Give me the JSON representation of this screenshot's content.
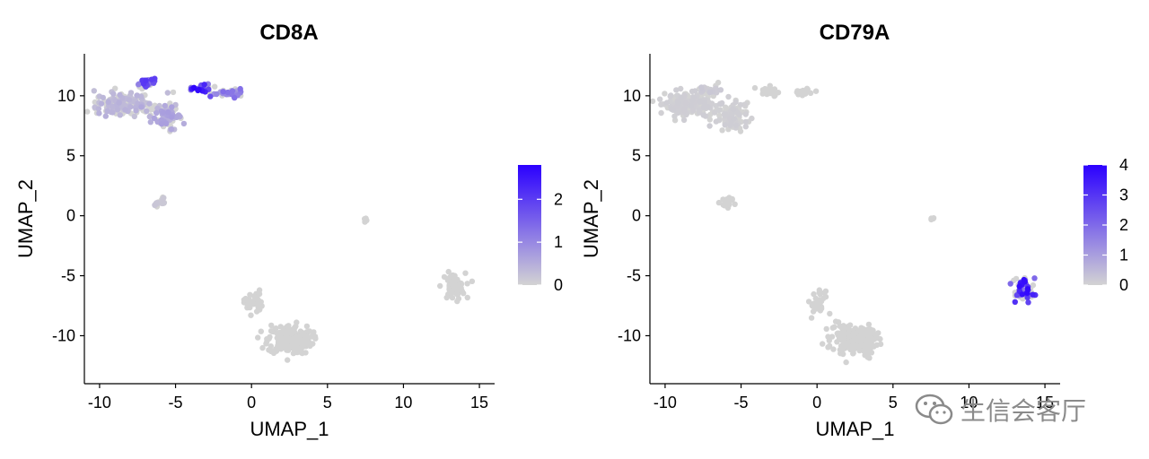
{
  "chart_data": [
    {
      "type": "scatter",
      "title": "CD8A",
      "xlabel": "UMAP_1",
      "ylabel": "UMAP_2",
      "xlim": [
        -11,
        16
      ],
      "ylim": [
        -14,
        13.5
      ],
      "xticks": [
        -10,
        -5,
        0,
        5,
        10,
        15
      ],
      "yticks": [
        -10,
        -5,
        0,
        5,
        10
      ],
      "grid": false,
      "colorbar": {
        "min": 0,
        "max": 2.8,
        "ticks": [
          0,
          1,
          2
        ],
        "low_color": "#d3d3d3",
        "high_color": "#2b00ff",
        "placement": "right"
      },
      "clusters": [
        {
          "name": "c1",
          "center": [
            -8.5,
            9.3
          ],
          "spread": [
            1.6,
            0.9
          ],
          "n": 170,
          "expr": 0.4
        },
        {
          "name": "c2",
          "center": [
            -5.6,
            8.3
          ],
          "spread": [
            0.9,
            1.1
          ],
          "n": 90,
          "expr": 0.6
        },
        {
          "name": "c3",
          "center": [
            -6.9,
            11.0
          ],
          "spread": [
            0.6,
            0.5
          ],
          "n": 28,
          "expr": 1.8
        },
        {
          "name": "c4",
          "center": [
            -3.4,
            10.6
          ],
          "spread": [
            0.7,
            0.45
          ],
          "n": 30,
          "expr": 2.3
        },
        {
          "name": "c5",
          "center": [
            -1.2,
            10.3
          ],
          "spread": [
            0.9,
            0.3
          ],
          "n": 34,
          "expr": 1.2
        },
        {
          "name": "c6",
          "center": [
            -5.9,
            1.1
          ],
          "spread": [
            0.35,
            0.3
          ],
          "n": 22,
          "expr": 0.15
        },
        {
          "name": "c7",
          "center": [
            7.5,
            -0.3
          ],
          "spread": [
            0.12,
            0.1
          ],
          "n": 4,
          "expr": 0
        },
        {
          "name": "c8",
          "center": [
            13.3,
            -5.9
          ],
          "spread": [
            0.7,
            1.0
          ],
          "n": 60,
          "expr": 0
        },
        {
          "name": "c9",
          "center": [
            2.5,
            -10.3
          ],
          "spread": [
            1.3,
            1.1
          ],
          "n": 220,
          "expr": 0
        },
        {
          "name": "c10",
          "center": [
            0.1,
            -7.2
          ],
          "spread": [
            0.55,
            0.9
          ],
          "n": 35,
          "expr": 0
        }
      ]
    },
    {
      "type": "scatter",
      "title": "CD79A",
      "xlabel": "UMAP_1",
      "ylabel": "UMAP_2",
      "xlim": [
        -11,
        16
      ],
      "ylim": [
        -14,
        13.5
      ],
      "xticks": [
        -10,
        -5,
        0,
        5,
        10,
        15
      ],
      "yticks": [
        -10,
        -5,
        0,
        5,
        10
      ],
      "grid": false,
      "colorbar": {
        "min": 0,
        "max": 4,
        "ticks": [
          0,
          1,
          2,
          3,
          4
        ],
        "low_color": "#d3d3d3",
        "high_color": "#2b00ff",
        "placement": "right"
      },
      "clusters": [
        {
          "name": "c1",
          "center": [
            -8.5,
            9.3
          ],
          "spread": [
            1.6,
            0.9
          ],
          "n": 170,
          "expr": 0.1
        },
        {
          "name": "c2",
          "center": [
            -5.6,
            8.3
          ],
          "spread": [
            0.9,
            1.1
          ],
          "n": 90,
          "expr": 0.1
        },
        {
          "name": "c3",
          "center": [
            -7.0,
            10.6
          ],
          "spread": [
            0.6,
            0.5
          ],
          "n": 20,
          "expr": 0.2
        },
        {
          "name": "c4",
          "center": [
            -3.2,
            10.4
          ],
          "spread": [
            0.7,
            0.4
          ],
          "n": 22,
          "expr": 0
        },
        {
          "name": "c5",
          "center": [
            -0.8,
            10.3
          ],
          "spread": [
            0.6,
            0.3
          ],
          "n": 18,
          "expr": 0
        },
        {
          "name": "c6",
          "center": [
            -5.9,
            1.1
          ],
          "spread": [
            0.35,
            0.3
          ],
          "n": 22,
          "expr": 0
        },
        {
          "name": "c7",
          "center": [
            7.5,
            -0.3
          ],
          "spread": [
            0.12,
            0.1
          ],
          "n": 4,
          "expr": 0
        },
        {
          "name": "c8",
          "center": [
            13.6,
            -6.2
          ],
          "spread": [
            0.6,
            1.0
          ],
          "n": 65,
          "expr": 3.2
        },
        {
          "name": "c9",
          "center": [
            2.5,
            -10.3
          ],
          "spread": [
            1.3,
            1.1
          ],
          "n": 220,
          "expr": 0
        },
        {
          "name": "c10",
          "center": [
            0.1,
            -7.2
          ],
          "spread": [
            0.55,
            0.9
          ],
          "n": 35,
          "expr": 0
        }
      ]
    }
  ],
  "watermark": {
    "text": "生信会客厅"
  }
}
